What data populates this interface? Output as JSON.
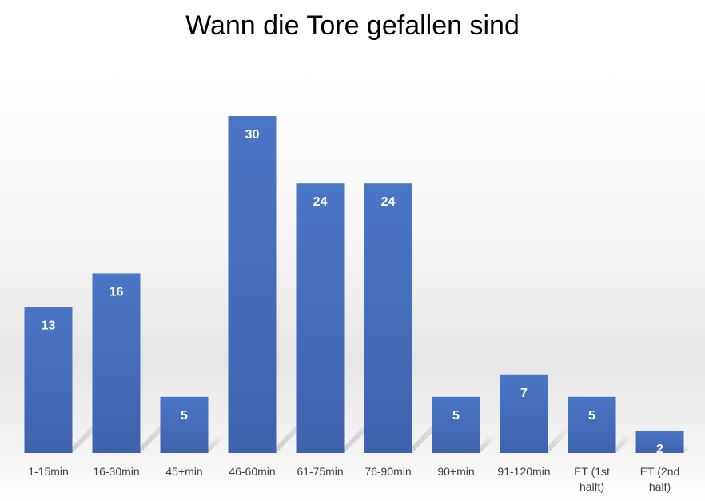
{
  "chart_data": {
    "type": "bar",
    "title": "Wann die Tore gefallen sind",
    "categories": [
      "1-15min",
      "16-30min",
      "45+min",
      "46-60min",
      "61-75min",
      "76-90min",
      "90+min",
      "91-120min",
      "ET (1st halft)",
      "ET (2nd half)"
    ],
    "values": [
      13,
      16,
      5,
      30,
      24,
      24,
      5,
      7,
      5,
      2
    ],
    "xlabel": "",
    "ylabel": "",
    "ylim": [
      0,
      30
    ],
    "grid": false,
    "legend": "none",
    "data_labels": true,
    "bar_color": "#4472c4"
  }
}
